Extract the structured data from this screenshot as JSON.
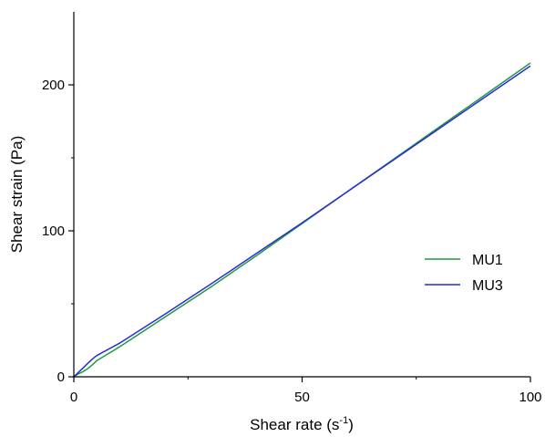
{
  "chart_data": {
    "type": "line",
    "xlabel": "Shear rate (s",
    "xlabel_sup": "-1",
    "xlabel_tail": ")",
    "ylabel": "Shear strain (Pa)",
    "xlim": [
      0,
      100
    ],
    "ylim": [
      0,
      250
    ],
    "x_ticks": [
      0,
      50,
      100
    ],
    "y_ticks": [
      0,
      100,
      200
    ],
    "x_minor_ticks": [
      25,
      75
    ],
    "y_minor_ticks": [
      50,
      150
    ],
    "grid": false,
    "legend_position": "right",
    "series": [
      {
        "name": "MU1",
        "color": "#1f9a3f",
        "x": [
          0,
          1,
          2,
          3,
          4,
          5,
          10,
          20,
          30,
          40,
          50,
          60,
          70,
          80,
          90,
          100
        ],
        "y": [
          0,
          2,
          3.5,
          5.5,
          8,
          11,
          20.5,
          41,
          61.5,
          83,
          105,
          127,
          149,
          171,
          193,
          215
        ]
      },
      {
        "name": "MU3",
        "color": "#2b2bd6",
        "x": [
          0,
          1,
          2,
          3,
          4,
          5,
          10,
          20,
          30,
          40,
          50,
          60,
          70,
          80,
          90,
          100
        ],
        "y": [
          0,
          3,
          6,
          9,
          12,
          14.5,
          23,
          43,
          63.5,
          84.5,
          105.5,
          127,
          148.5,
          170,
          191.5,
          213
        ]
      }
    ]
  }
}
